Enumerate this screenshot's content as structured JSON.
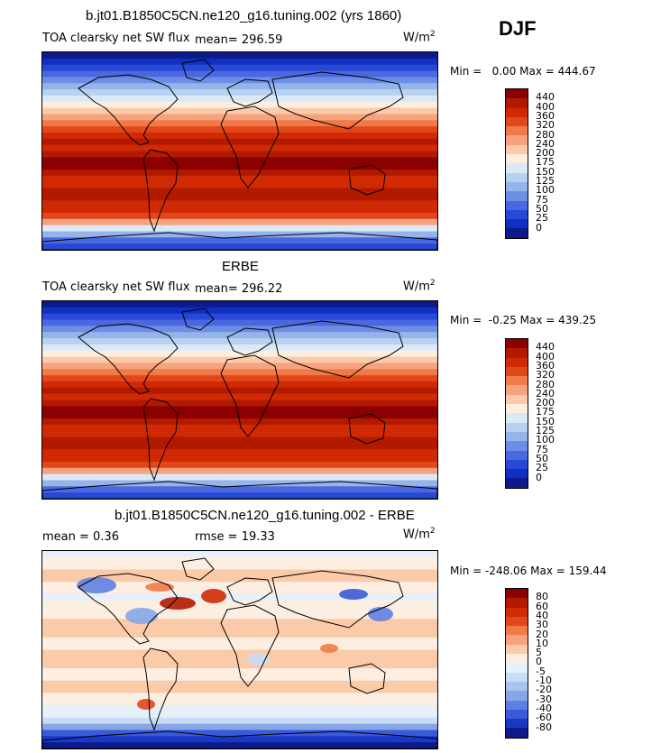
{
  "figure": {
    "top_title": "b.jt01.B1850C5CN.ne120_g16.tuning.002 (yrs 1860)",
    "season": "DJF"
  },
  "panels": [
    {
      "id": "model",
      "heading": "",
      "field_label": "TOA clearsky net SW flux",
      "stat_text": "mean= 296.59",
      "units_base": "W/m",
      "units_exp": "2",
      "minmax": "Min =   0.00 Max = 444.67",
      "levels": [
        "440",
        "400",
        "360",
        "320",
        "280",
        "240",
        "200",
        "175",
        "150",
        "125",
        "100",
        "75",
        "50",
        "25",
        "0"
      ],
      "colors": [
        "#8b0000",
        "#b21a00",
        "#cf2a04",
        "#e2471a",
        "#f07a48",
        "#f7a27e",
        "#fbcaa8",
        "#fdeee2",
        "#dbe9f7",
        "#b8d1f0",
        "#94b4ea",
        "#6d8ee6",
        "#4a68e0",
        "#2848d6",
        "#1030c2",
        "#0c1a8a"
      ]
    },
    {
      "id": "obs",
      "heading": "ERBE",
      "field_label": "TOA clearsky net SW flux",
      "stat_text": "mean= 296.22",
      "units_base": "W/m",
      "units_exp": "2",
      "minmax": "Min =  -0.25 Max = 439.25",
      "levels": [
        "440",
        "400",
        "360",
        "320",
        "280",
        "240",
        "200",
        "175",
        "150",
        "125",
        "100",
        "75",
        "50",
        "25",
        "0"
      ],
      "colors": [
        "#8b0000",
        "#b21a00",
        "#cf2a04",
        "#e2471a",
        "#f07a48",
        "#f7a27e",
        "#fbcaa8",
        "#fdeee2",
        "#dbe9f7",
        "#b8d1f0",
        "#94b4ea",
        "#6d8ee6",
        "#4a68e0",
        "#2848d6",
        "#1030c2",
        "#0c1a8a"
      ]
    },
    {
      "id": "diff",
      "heading": "b.jt01.B1850C5CN.ne120_g16.tuning.002 - ERBE",
      "field_label": "mean =   0.36",
      "stat_text": "rmse =   19.33",
      "units_base": "W/m",
      "units_exp": "2",
      "minmax": "Min = -248.06 Max = 159.44",
      "levels": [
        "80",
        "60",
        "40",
        "30",
        "20",
        "10",
        "5",
        "0",
        "-5",
        "-10",
        "-20",
        "-30",
        "-40",
        "-60",
        "-80"
      ],
      "colors": [
        "#8b0000",
        "#b21a00",
        "#cf2a04",
        "#e2471a",
        "#f07a48",
        "#f7a27e",
        "#fbcaa8",
        "#fdeee2",
        "#e6f0fb",
        "#c8dcf4",
        "#a8c4ee",
        "#86a6e8",
        "#5f80e2",
        "#3a5ad8",
        "#1a38c8",
        "#0c1a8a"
      ]
    }
  ]
}
